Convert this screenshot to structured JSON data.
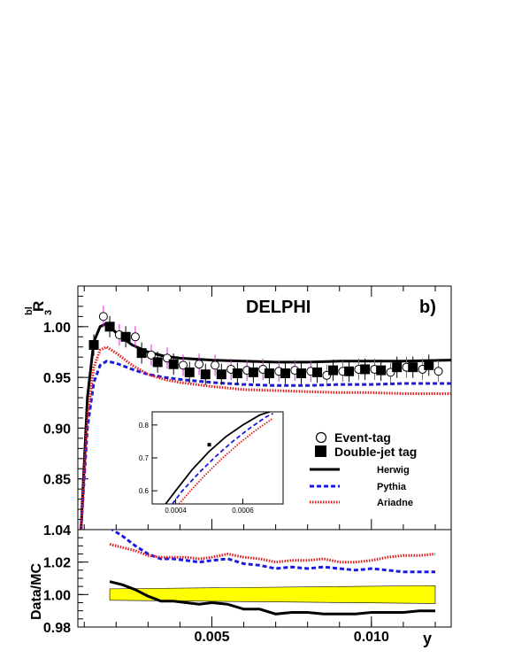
{
  "chart_data": [
    {
      "type": "scatter",
      "panel": "main",
      "title": "DELPHI",
      "panel_label": "b)",
      "ylabel_base": "R",
      "ylabel_sub": "3",
      "ylabel_sup": "bl",
      "xlim": [
        0.0008,
        0.0125
      ],
      "ylim": [
        0.8,
        1.04
      ],
      "yticks": [
        0.85,
        0.9,
        0.95,
        1.0
      ],
      "ytick_labels": [
        "0.85",
        "0.90",
        "0.95",
        "1.00"
      ],
      "legend_position": "center-right",
      "legend": {
        "event_tag": "Event-tag",
        "double_jet": "Double-jet tag",
        "herwig": "Herwig",
        "pythia": "Pythia",
        "ariadne": "Ariadne"
      },
      "colors": {
        "herwig": "#000000",
        "pythia": "#1a1adc",
        "ariadne": "#e01a1a",
        "mc_band": "#e020e0"
      },
      "series": [
        {
          "name": "Event-tag",
          "marker": "open-circle",
          "x": [
            0.0016,
            0.0021,
            0.0026,
            0.0031,
            0.0036,
            0.0041,
            0.0046,
            0.0051,
            0.0056,
            0.0061,
            0.0066,
            0.0071,
            0.0076,
            0.0081,
            0.0086,
            0.0091,
            0.0096,
            0.0101,
            0.0106,
            0.0111,
            0.0116,
            0.0121
          ],
          "y": [
            1.01,
            0.992,
            0.99,
            0.972,
            0.969,
            0.962,
            0.963,
            0.962,
            0.958,
            0.957,
            0.958,
            0.956,
            0.957,
            0.956,
            0.952,
            0.956,
            0.958,
            0.958,
            0.955,
            0.96,
            0.958,
            0.956
          ]
        },
        {
          "name": "Double-jet tag",
          "marker": "filled-square",
          "x": [
            0.0013,
            0.0018,
            0.0023,
            0.0028,
            0.0033,
            0.0038,
            0.0043,
            0.0048,
            0.0053,
            0.0058,
            0.0063,
            0.0068,
            0.0073,
            0.0078,
            0.0083,
            0.0088,
            0.0093,
            0.0098,
            0.0103,
            0.0108,
            0.0113,
            0.0118
          ],
          "y": [
            0.982,
            1.0,
            0.99,
            0.974,
            0.965,
            0.963,
            0.955,
            0.953,
            0.953,
            0.954,
            0.955,
            0.954,
            0.954,
            0.954,
            0.955,
            0.957,
            0.956,
            0.958,
            0.957,
            0.96,
            0.96,
            0.962
          ]
        },
        {
          "name": "Herwig",
          "style": "solid",
          "x": [
            0.0009,
            0.0011,
            0.0013,
            0.0015,
            0.0017,
            0.002,
            0.0025,
            0.003,
            0.0035,
            0.004,
            0.005,
            0.006,
            0.007,
            0.008,
            0.009,
            0.01,
            0.011,
            0.0125
          ],
          "y": [
            0.8,
            0.93,
            0.985,
            1.0,
            1.003,
            0.994,
            0.982,
            0.975,
            0.971,
            0.969,
            0.967,
            0.966,
            0.965,
            0.965,
            0.966,
            0.966,
            0.966,
            0.967
          ]
        },
        {
          "name": "Pythia",
          "style": "dashed",
          "x": [
            0.0009,
            0.0011,
            0.0013,
            0.0015,
            0.0017,
            0.002,
            0.0025,
            0.003,
            0.0035,
            0.004,
            0.005,
            0.006,
            0.007,
            0.008,
            0.009,
            0.01,
            0.011,
            0.0125
          ],
          "y": [
            0.8,
            0.9,
            0.945,
            0.962,
            0.966,
            0.964,
            0.958,
            0.953,
            0.95,
            0.948,
            0.945,
            0.943,
            0.942,
            0.942,
            0.943,
            0.943,
            0.944,
            0.944
          ]
        },
        {
          "name": "Ariadne",
          "style": "dotted",
          "x": [
            0.0009,
            0.0011,
            0.0013,
            0.0015,
            0.0017,
            0.002,
            0.0025,
            0.003,
            0.0035,
            0.004,
            0.005,
            0.006,
            0.007,
            0.008,
            0.009,
            0.01,
            0.011,
            0.0125
          ],
          "y": [
            0.8,
            0.91,
            0.96,
            0.977,
            0.98,
            0.974,
            0.962,
            0.953,
            0.948,
            0.945,
            0.941,
            0.938,
            0.937,
            0.936,
            0.935,
            0.935,
            0.934,
            0.934
          ]
        }
      ],
      "inset": {
        "xlim": [
          0.00033,
          0.00072
        ],
        "ylim": [
          0.56,
          0.84
        ],
        "yticks": [
          0.6,
          0.7,
          0.8
        ],
        "ytick_labels": [
          "0.6",
          "0.7",
          "0.8"
        ],
        "xticks": [
          0.0004,
          0.0006
        ],
        "xtick_labels": [
          "0.0004",
          "0.0006"
        ],
        "point": {
          "x": 0.0005,
          "y": 0.74
        },
        "curves": [
          {
            "name": "Herwig",
            "x": [
              0.00037,
              0.0004,
              0.00045,
              0.0005,
              0.00055,
              0.0006,
              0.00065,
              0.00068
            ],
            "y": [
              0.56,
              0.6,
              0.665,
              0.72,
              0.765,
              0.8,
              0.83,
              0.84
            ]
          },
          {
            "name": "Pythia",
            "x": [
              0.00039,
              0.00042,
              0.00047,
              0.00052,
              0.00057,
              0.00062,
              0.00067,
              0.00069
            ],
            "y": [
              0.56,
              0.6,
              0.655,
              0.705,
              0.75,
              0.79,
              0.825,
              0.835
            ]
          },
          {
            "name": "Ariadne",
            "x": [
              0.00041,
              0.00044,
              0.00049,
              0.00054,
              0.00059,
              0.00064,
              0.00069
            ],
            "y": [
              0.56,
              0.595,
              0.65,
              0.7,
              0.745,
              0.785,
              0.82
            ]
          }
        ]
      }
    },
    {
      "type": "line",
      "panel": "ratio",
      "ylabel": "Data/MC",
      "xlabel": "y",
      "xlim": [
        0.0008,
        0.0125
      ],
      "ylim": [
        0.98,
        1.04
      ],
      "yticks": [
        0.98,
        1.0,
        1.02,
        1.04
      ],
      "ytick_labels": [
        "0.98",
        "1.00",
        "1.02",
        "1.04"
      ],
      "xticks": [
        0.005,
        0.01
      ],
      "xtick_labels": [
        "0.005",
        "0.010"
      ],
      "band": {
        "x": [
          0.0018,
          0.012
        ],
        "low": [
          0.9965,
          0.9945
        ],
        "high": [
          1.0035,
          1.0055
        ],
        "color": "#ffff00"
      },
      "series": [
        {
          "name": "Herwig",
          "style": "solid",
          "x": [
            0.0018,
            0.0022,
            0.0026,
            0.003,
            0.0034,
            0.0038,
            0.0042,
            0.0046,
            0.005,
            0.0055,
            0.006,
            0.0065,
            0.007,
            0.0075,
            0.008,
            0.0085,
            0.009,
            0.0095,
            0.01,
            0.0105,
            0.011,
            0.0115,
            0.012
          ],
          "y": [
            1.008,
            1.006,
            1.003,
            0.999,
            0.996,
            0.996,
            0.995,
            0.994,
            0.995,
            0.994,
            0.991,
            0.991,
            0.988,
            0.989,
            0.989,
            0.988,
            0.988,
            0.988,
            0.989,
            0.989,
            0.989,
            0.99,
            0.99
          ]
        },
        {
          "name": "Pythia",
          "style": "dashed",
          "x": [
            0.0018,
            0.0022,
            0.0026,
            0.003,
            0.0034,
            0.0038,
            0.0042,
            0.0046,
            0.005,
            0.0055,
            0.006,
            0.0065,
            0.007,
            0.0075,
            0.008,
            0.0085,
            0.009,
            0.0095,
            0.01,
            0.0105,
            0.011,
            0.0115,
            0.012
          ],
          "y": [
            1.041,
            1.036,
            1.03,
            1.025,
            1.022,
            1.022,
            1.021,
            1.02,
            1.021,
            1.022,
            1.019,
            1.018,
            1.016,
            1.017,
            1.016,
            1.017,
            1.016,
            1.015,
            1.016,
            1.015,
            1.014,
            1.014,
            1.014
          ]
        },
        {
          "name": "Ariadne",
          "style": "dotted",
          "x": [
            0.0018,
            0.0022,
            0.0026,
            0.003,
            0.0034,
            0.0038,
            0.0042,
            0.0046,
            0.005,
            0.0055,
            0.006,
            0.0065,
            0.007,
            0.0075,
            0.008,
            0.0085,
            0.009,
            0.0095,
            0.01,
            0.0105,
            0.011,
            0.0115,
            0.012
          ],
          "y": [
            1.031,
            1.029,
            1.027,
            1.024,
            1.023,
            1.023,
            1.023,
            1.022,
            1.023,
            1.025,
            1.023,
            1.022,
            1.02,
            1.021,
            1.021,
            1.022,
            1.02,
            1.02,
            1.021,
            1.023,
            1.024,
            1.024,
            1.025
          ]
        }
      ]
    }
  ]
}
